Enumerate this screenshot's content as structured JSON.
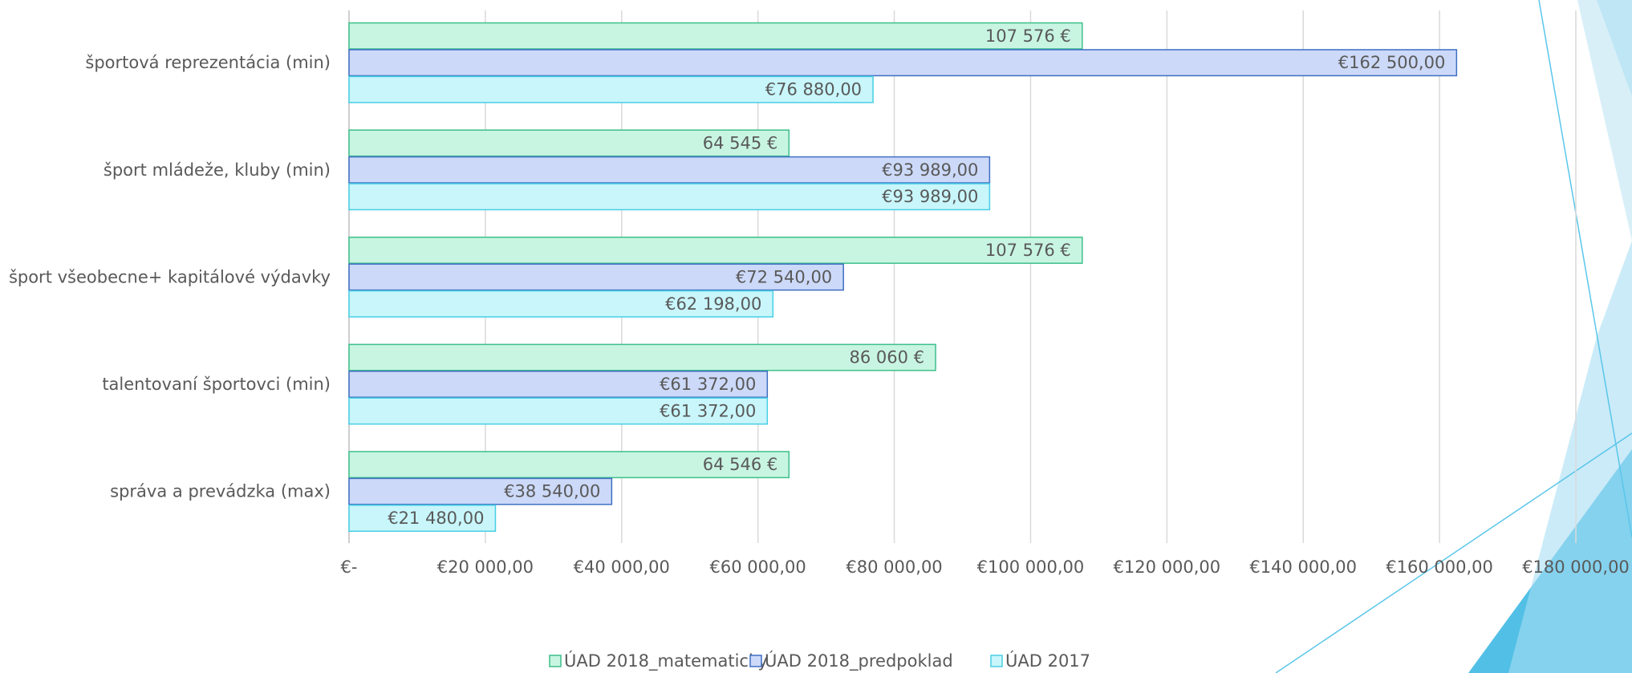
{
  "chart_data": {
    "type": "bar",
    "orientation": "horizontal",
    "categories": [
      "športová reprezentácia (min)",
      "šport mládeže, kluby (min)",
      "šport všeobecne+ kapitálové výdavky",
      "talentovaní športovci (min)",
      "správa a prevádzka (max)"
    ],
    "series": [
      {
        "name": "ÚAD 2018_matematicky",
        "color": "#c8f5e2",
        "stroke": "#3dbf8a",
        "values": [
          107576,
          64545,
          107576,
          86060,
          64546
        ],
        "value_labels": [
          "107 576 €",
          "64 545 €",
          "107 576 €",
          "86 060 €",
          "64 546 €"
        ]
      },
      {
        "name": "ÚAD 2018_predpoklad",
        "color": "#ccd9f8",
        "stroke": "#3f6fc4",
        "values": [
          162500,
          93989,
          72540,
          61372,
          38540
        ],
        "value_labels": [
          "€162 500,00",
          "€93 989,00",
          "€72 540,00",
          "€61 372,00",
          "€38 540,00"
        ]
      },
      {
        "name": "ÚAD 2017",
        "color": "#c8f6fb",
        "stroke": "#48cfe4",
        "values": [
          76880,
          93989,
          62198,
          61372,
          21480
        ],
        "value_labels": [
          "€76 880,00",
          "€93 989,00",
          "€62 198,00",
          "€61 372,00",
          "€21 480,00"
        ]
      }
    ],
    "xlim": [
      0,
      180000
    ],
    "xticks": [
      {
        "value": 0,
        "label": "€-"
      },
      {
        "value": 20000,
        "label": "€20 000,00"
      },
      {
        "value": 40000,
        "label": "€40 000,00"
      },
      {
        "value": 60000,
        "label": "€60 000,00"
      },
      {
        "value": 80000,
        "label": "€80 000,00"
      },
      {
        "value": 100000,
        "label": "€100 000,00"
      },
      {
        "value": 120000,
        "label": "€120 000,00"
      },
      {
        "value": 140000,
        "label": "€140 000,00"
      },
      {
        "value": 160000,
        "label": "€160 000,00"
      },
      {
        "value": 180000,
        "label": "€180 000,00"
      }
    ],
    "grid": true,
    "legend": "bottom"
  }
}
